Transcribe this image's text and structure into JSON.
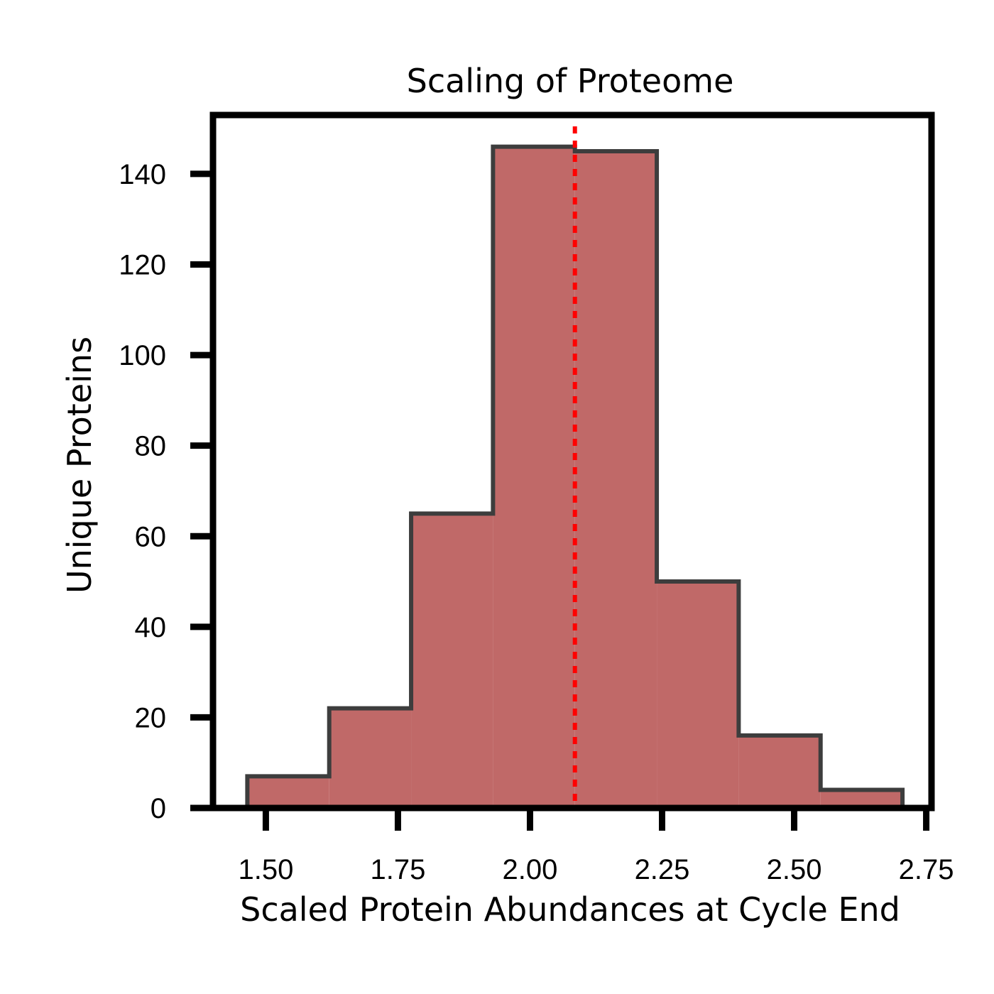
{
  "chart_data": {
    "type": "bar",
    "title": "Scaling of Proteome",
    "xlabel": "Scaled Protein Abundances at Cycle End",
    "ylabel": "Unique Proteins",
    "xlim": [
      1.4,
      2.76
    ],
    "ylim": [
      0,
      153
    ],
    "xticks": [
      1.5,
      1.75,
      2.0,
      2.25,
      2.5,
      2.75
    ],
    "xtick_labels": [
      "1.50",
      "1.75",
      "2.00",
      "2.25",
      "2.50",
      "2.75"
    ],
    "yticks": [
      0,
      20,
      40,
      60,
      80,
      100,
      120,
      140
    ],
    "ytick_labels": [
      "0",
      "20",
      "40",
      "60",
      "80",
      "100",
      "120",
      "140"
    ],
    "bin_edges": [
      1.465,
      1.62,
      1.775,
      1.93,
      2.085,
      2.24,
      2.395,
      2.55,
      2.705
    ],
    "values": [
      7,
      22,
      65,
      146,
      145,
      50,
      16,
      4
    ],
    "mean_line": 2.085,
    "bar_color": "#c06968",
    "edge_color": "#3d3d3d",
    "mean_line_color": "#ff0000",
    "grid": false
  }
}
